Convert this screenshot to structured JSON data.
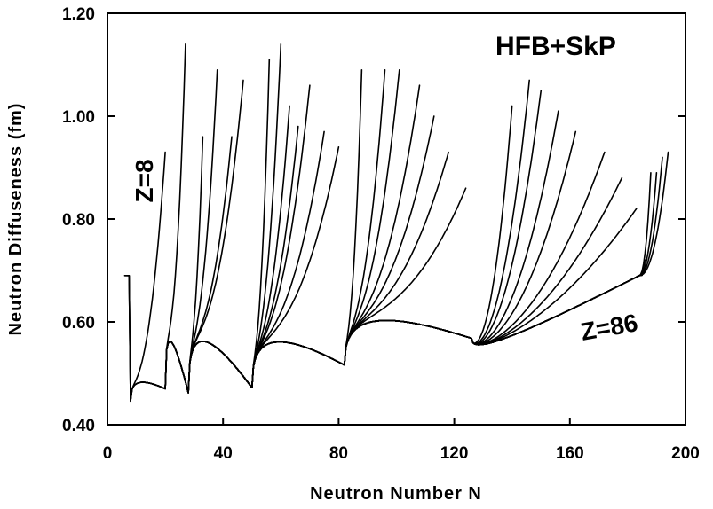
{
  "chart_data": {
    "type": "line",
    "title": "",
    "xlabel": "Neutron Number N",
    "ylabel": "Neutron Diffuseness (fm)",
    "xlim": [
      0,
      200
    ],
    "ylim": [
      0.4,
      1.2
    ],
    "xticks": [
      0,
      40,
      80,
      120,
      160,
      200
    ],
    "xtick_labels": [
      "0",
      "40",
      "80",
      "120",
      "160",
      "200"
    ],
    "yticks": [
      0.4,
      0.6,
      0.8,
      1.0,
      1.2
    ],
    "ytick_labels": [
      "0.40",
      "0.60",
      "0.80",
      "1.00",
      "1.20"
    ],
    "grid": false,
    "legend": "none",
    "line_color": "#000000",
    "annotations": {
      "model": "HFB+SkP",
      "z_low": "Z=8",
      "z_high": "Z=86"
    },
    "isotope_chains": {
      "Z_range": [
        8,
        86
      ],
      "Z_step": 2,
      "shell_closures": [
        8,
        20,
        28,
        50,
        82,
        126,
        184
      ],
      "dip_values": [
        0.446,
        0.47,
        0.462,
        0.472,
        0.516,
        0.568,
        0.69
      ],
      "peak_values": [
        0.488,
        0.56,
        0.565,
        0.572,
        0.615,
        0.605,
        0.74
      ],
      "drip_line": [
        [
          8,
          20,
          0.93
        ],
        [
          10,
          27,
          1.14
        ],
        [
          12,
          33,
          0.96
        ],
        [
          14,
          38,
          1.09
        ],
        [
          16,
          43,
          0.96
        ],
        [
          18,
          47,
          1.07
        ],
        [
          20,
          56,
          1.11
        ],
        [
          22,
          60,
          1.14
        ],
        [
          24,
          63,
          1.02
        ],
        [
          26,
          66,
          0.98
        ],
        [
          28,
          70,
          1.06
        ],
        [
          30,
          75,
          0.97
        ],
        [
          32,
          80,
          0.94
        ],
        [
          34,
          88,
          1.09
        ],
        [
          36,
          96,
          1.09
        ],
        [
          38,
          101,
          1.09
        ],
        [
          40,
          108,
          1.06
        ],
        [
          42,
          113,
          1.0
        ],
        [
          44,
          118,
          0.93
        ],
        [
          46,
          124,
          0.86
        ],
        [
          48,
          140,
          1.02
        ],
        [
          50,
          146,
          1.07
        ],
        [
          52,
          150,
          1.05
        ],
        [
          54,
          156,
          1.01
        ],
        [
          56,
          162,
          0.97
        ],
        [
          58,
          172,
          0.93
        ],
        [
          60,
          178,
          0.88
        ],
        [
          62,
          183,
          0.82
        ],
        [
          64,
          185,
          0.79
        ],
        [
          66,
          185,
          0.765
        ],
        [
          68,
          185,
          0.75
        ],
        [
          70,
          185,
          0.74
        ],
        [
          72,
          185,
          0.728
        ],
        [
          74,
          185,
          0.714
        ],
        [
          76,
          185,
          0.703
        ],
        [
          78,
          186,
          0.83
        ],
        [
          80,
          188,
          0.89
        ],
        [
          82,
          190,
          0.89
        ],
        [
          84,
          192,
          0.92
        ],
        [
          86,
          194,
          0.93
        ]
      ]
    }
  }
}
